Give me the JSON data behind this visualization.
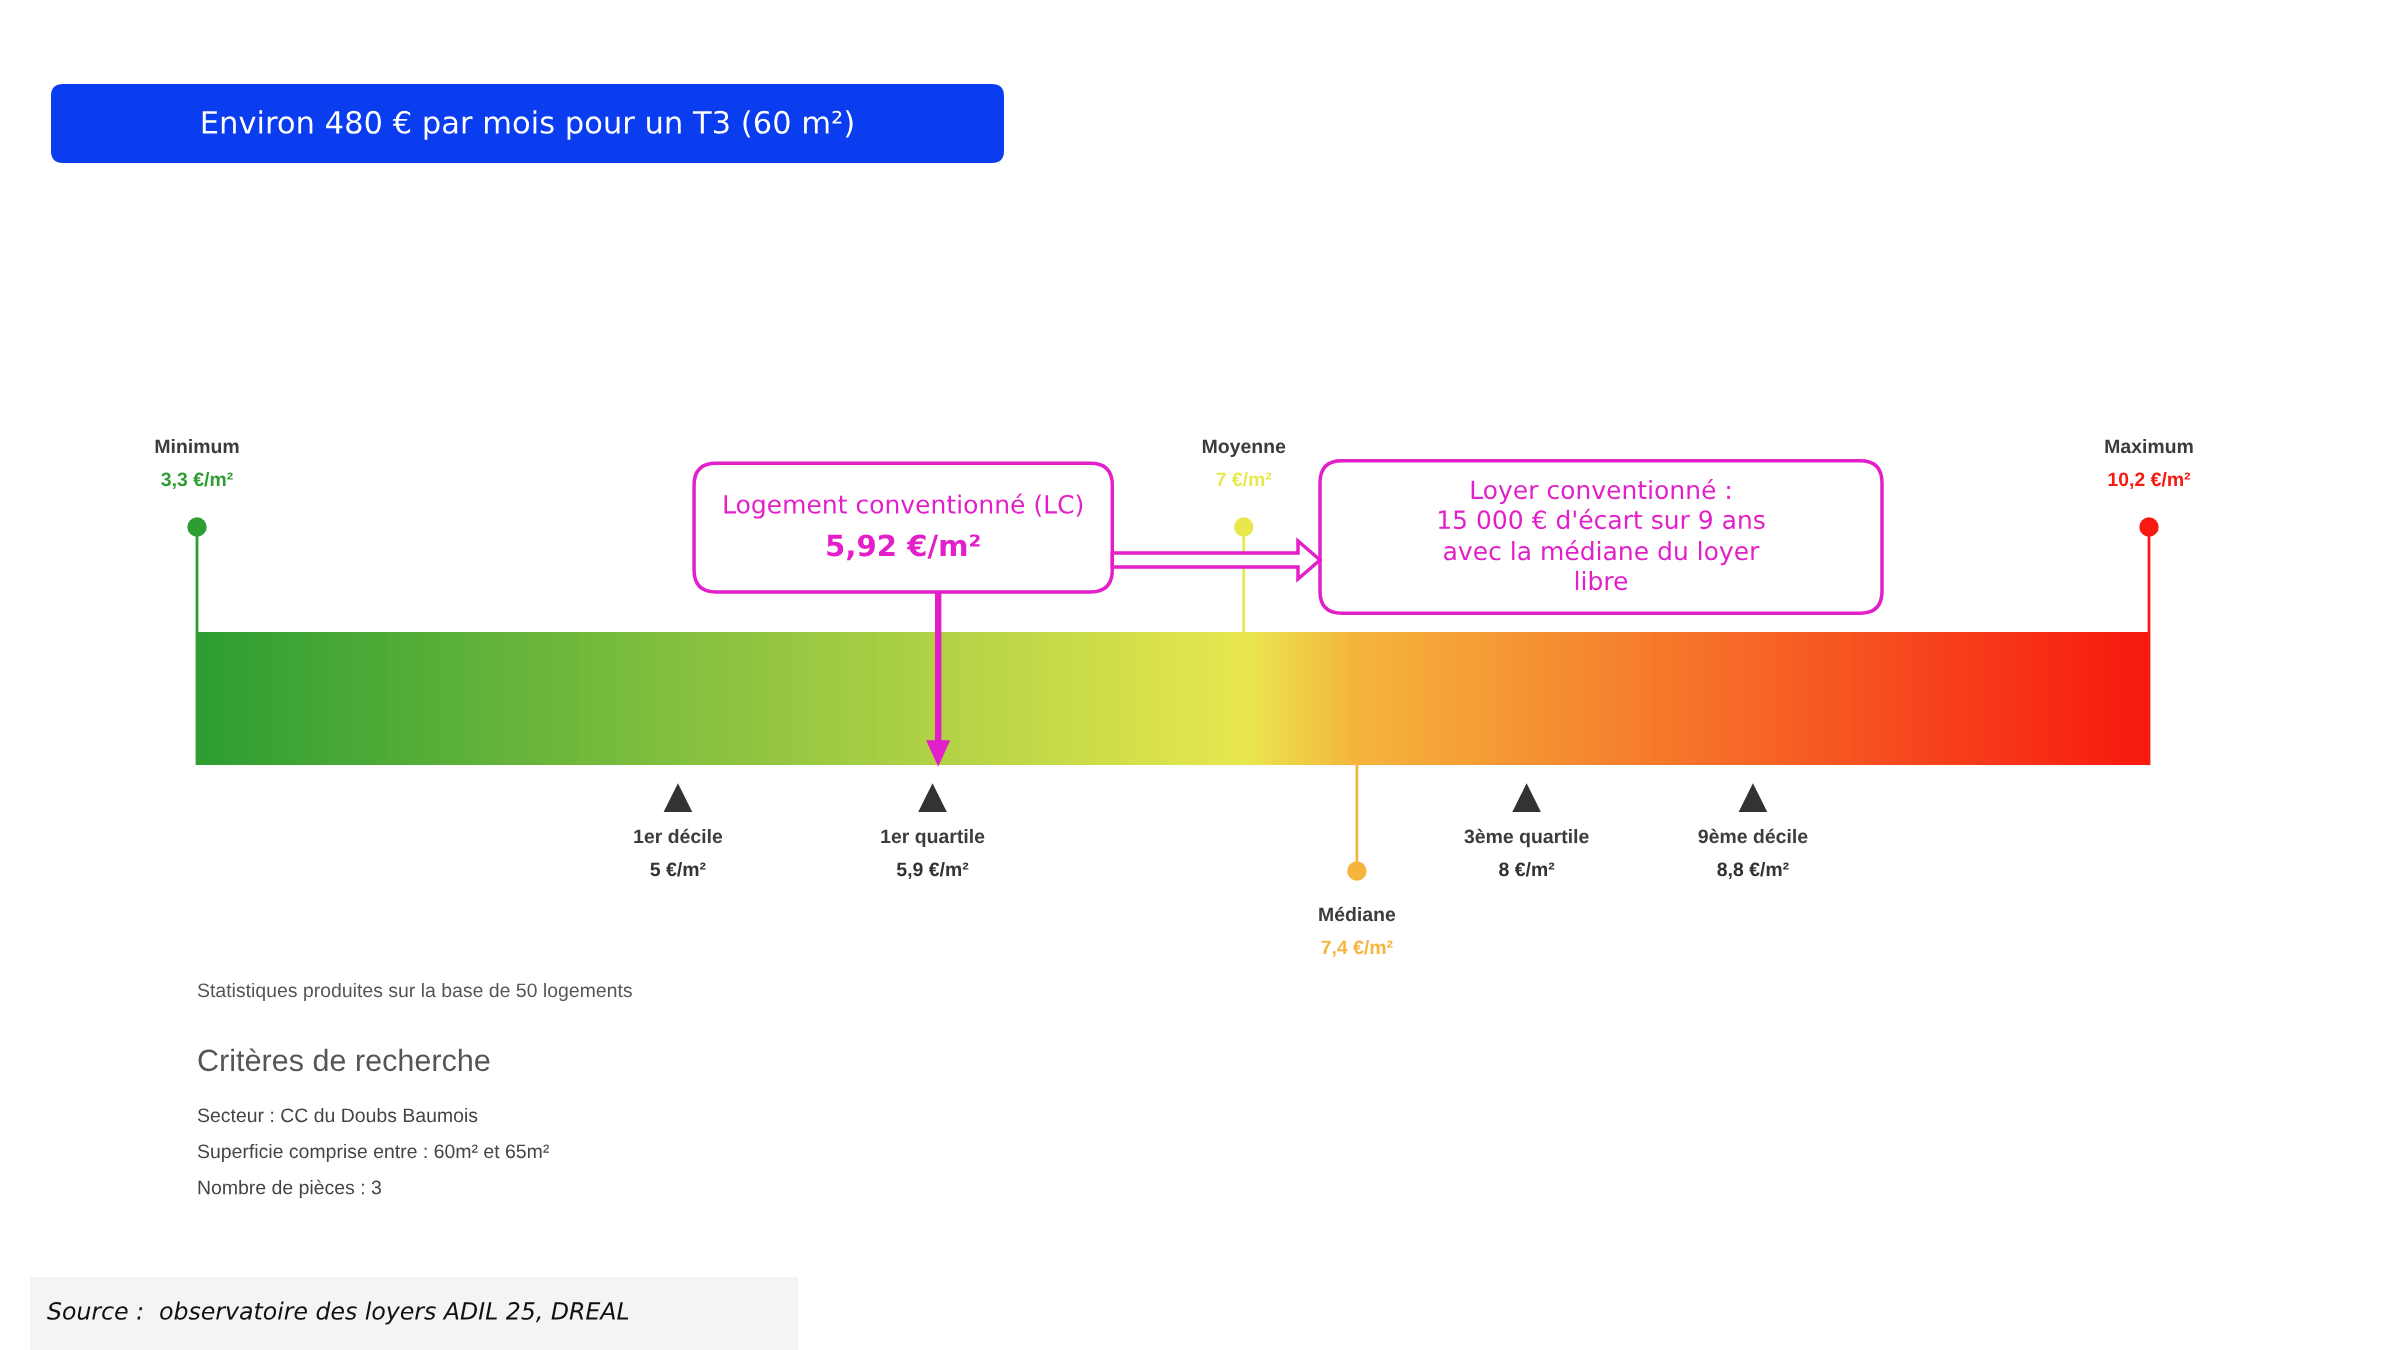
{
  "chart_data": {
    "type": "other",
    "title": "Environ 480 € par mois pour un T3 (60 m²)",
    "categories": [
      "Minimum",
      "1er décile",
      "1er quartile",
      "Logement conventionné (LC)",
      "Moyenne",
      "Médiane",
      "3ème quartile",
      "9ème décile",
      "Maximum"
    ],
    "series": [
      {
        "type": "lollipop",
        "marker": "circle",
        "colors": [
          "#2e9e32",
          null,
          null,
          null,
          "#e8e84e",
          null,
          null,
          null,
          "#f81a10"
        ],
        "values": [
          3.3,
          null,
          null,
          null,
          7,
          null,
          null,
          null,
          10.2
        ],
        "value_labels": [
          "3,3 €/m²",
          null,
          null,
          null,
          "7 €/m²",
          null,
          null,
          null,
          "10,2 €/m²"
        ]
      },
      {
        "type": "lollipop",
        "marker": "circle",
        "color": "#f5b53d",
        "values": [
          null,
          null,
          null,
          null,
          null,
          7.4,
          null,
          null,
          null
        ],
        "value_labels": [
          null,
          null,
          null,
          null,
          null,
          "7,4 €/m²",
          null,
          null,
          null
        ]
      },
      {
        "type": "scatter",
        "marker": "triangle",
        "color": "#333333",
        "values": [
          null,
          5,
          5.9,
          null,
          null,
          null,
          8,
          8.8,
          null
        ],
        "value_labels": [
          null,
          "5 €/m²",
          "5,9 €/m²",
          null,
          null,
          null,
          "8 €/m²",
          "8,8 €/m²",
          null
        ]
      },
      {
        "type": "other",
        "color": "#e21fc8",
        "values": [
          null,
          null,
          null,
          5.92,
          null,
          null,
          null,
          null,
          null
        ],
        "value_labels": [
          null,
          null,
          null,
          "5,92 €/m²",
          null,
          null,
          null,
          null,
          null
        ]
      }
    ],
    "annotations": [
      "Loyer conventionné : 15 000 € d'écart sur 9 ans avec la médiane du loyer libre",
      "Statistiques produites sur la base de 50 logements",
      "Critères de recherche",
      "Secteur : CC du Doubs Baumois",
      "Superficie comprise entre : 60m² et 65m²",
      "Nombre de pièces : 3",
      "Source :  observatoire des loyers ADIL 25, DREAL"
    ]
  }
}
